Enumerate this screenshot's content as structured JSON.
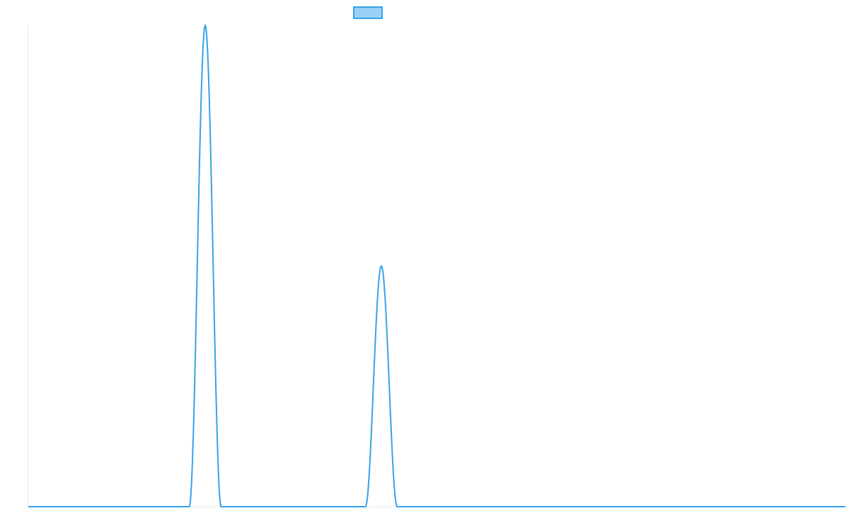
{
  "chart_data": {
    "type": "line",
    "title": "",
    "xlabel": "",
    "ylabel": "",
    "xlim": [
      0,
      1000
    ],
    "ylim": [
      0,
      1.0
    ],
    "grid": false,
    "legend": {
      "placement": "top-center",
      "entries": [
        ""
      ]
    },
    "colors": {
      "line": "#36a2eb",
      "fill": "#9ad0f5",
      "axis": "#e6e6e6"
    },
    "series": [
      {
        "name": "",
        "x": [
          0,
          196,
          199,
          202,
          205,
          208,
          211,
          214,
          217,
          220,
          223,
          226,
          229,
          232,
          235,
          238,
          241,
          1000
        ],
        "y": [
          0,
          0,
          0.03,
          0.117,
          0.25,
          0.413,
          0.587,
          0.75,
          0.883,
          0.97,
          1.0,
          0.97,
          0.883,
          0.75,
          0.587,
          0.413,
          0.25,
          0
        ],
        "peaks": [
          {
            "x": 216.5,
            "y": 1.0,
            "half_width": 19.5
          },
          {
            "x": 432.0,
            "y": 0.5,
            "half_width": 19.5
          }
        ]
      }
    ]
  }
}
